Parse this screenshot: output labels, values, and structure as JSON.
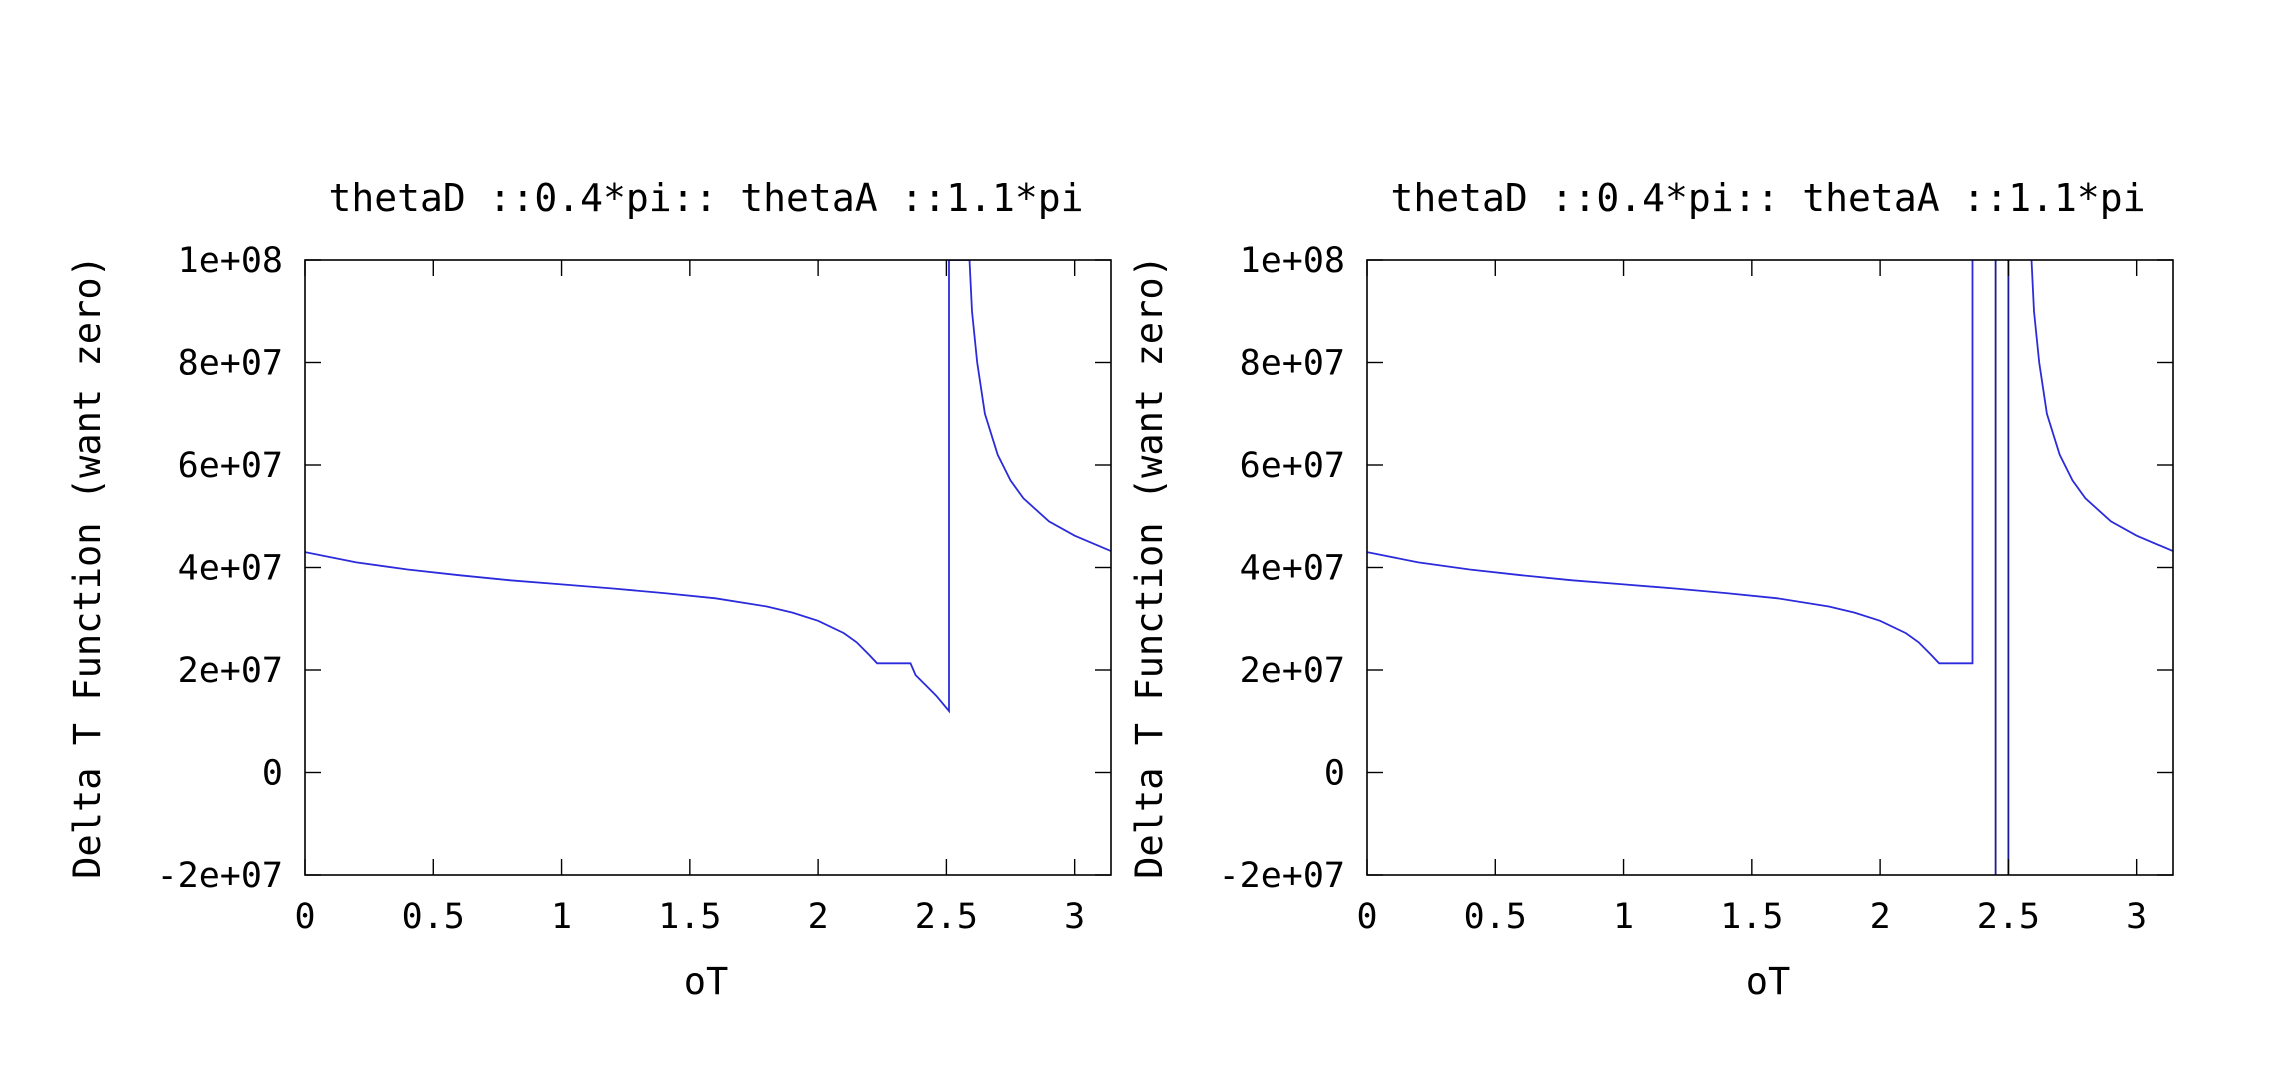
{
  "chart_data": [
    {
      "type": "line",
      "title": "thetaD ::0.4*pi:: thetaA ::1.1*pi",
      "xlabel": "oT",
      "ylabel": "Delta T Function (want zero)",
      "xlim": [
        0,
        3.1416
      ],
      "ylim": [
        -20000000,
        100000000
      ],
      "xticks": [
        "0",
        "0.5",
        "1",
        "1.5",
        "2",
        "2.5",
        "3"
      ],
      "yticks": [
        "-2e+07",
        "0",
        "2e+07",
        "4e+07",
        "6e+07",
        "8e+07",
        "1e+08"
      ],
      "grid": false,
      "legend": "none",
      "series": [
        {
          "color": "#2b2bdc",
          "x": [
            0,
            0.2,
            0.4,
            0.6,
            0.8,
            1.0,
            1.2,
            1.4,
            1.6,
            1.8,
            1.9,
            2.0,
            2.1,
            2.15,
            2.2,
            2.23,
            2.36,
            2.38,
            2.42,
            2.46,
            2.51,
            2.51,
            2.59,
            2.6,
            2.62,
            2.65,
            2.7,
            2.75,
            2.8,
            2.9,
            3.0,
            3.1416
          ],
          "y": [
            43000000,
            41000000,
            39600000,
            38500000,
            37500000,
            36700000,
            35900000,
            35000000,
            34000000,
            32400000,
            31200000,
            29600000,
            27200000,
            25400000,
            22900000,
            21300000,
            21300000,
            19000000,
            17000000,
            15000000,
            12000000,
            100000000,
            100000000,
            90000000,
            80000000,
            70000000,
            62000000,
            57000000,
            53500000,
            49000000,
            46200000,
            43200000
          ]
        }
      ]
    },
    {
      "type": "line",
      "title": "thetaD ::0.4*pi:: thetaA ::1.1*pi",
      "xlabel": "oT",
      "ylabel": "Delta T Function (want zero)",
      "xlim": [
        0,
        3.1416
      ],
      "ylim": [
        -20000000,
        100000000
      ],
      "xticks": [
        "0",
        "0.5",
        "1",
        "1.5",
        "2",
        "2.5",
        "3"
      ],
      "yticks": [
        "-2e+07",
        "0",
        "2e+07",
        "4e+07",
        "6e+07",
        "8e+07",
        "1e+08"
      ],
      "grid": false,
      "legend": "none",
      "series": [
        {
          "color": "#2b2bdc",
          "x": [
            0,
            0.2,
            0.4,
            0.6,
            0.8,
            1.0,
            1.2,
            1.4,
            1.6,
            1.8,
            1.9,
            2.0,
            2.1,
            2.15,
            2.2,
            2.23,
            2.36,
            2.36
          ],
          "y": [
            43000000,
            41000000,
            39600000,
            38500000,
            37500000,
            36700000,
            35900000,
            35000000,
            34000000,
            32400000,
            31200000,
            29600000,
            27200000,
            25400000,
            22900000,
            21300000,
            21300000,
            100000000
          ]
        },
        {
          "color": "#1a1a99",
          "x": [
            2.45,
            2.45
          ],
          "y": [
            -20000000,
            100000000
          ]
        },
        {
          "color": "#1a1a99",
          "x": [
            2.5,
            2.5
          ],
          "y": [
            -20000000,
            100000000
          ]
        },
        {
          "color": "#2b2bdc",
          "x": [
            2.59,
            2.6,
            2.62,
            2.65,
            2.7,
            2.75,
            2.8,
            2.9,
            3.0,
            3.1416
          ],
          "y": [
            100000000,
            90000000,
            80000000,
            70000000,
            62000000,
            57000000,
            53500000,
            49000000,
            46200000,
            43200000
          ]
        }
      ]
    }
  ]
}
